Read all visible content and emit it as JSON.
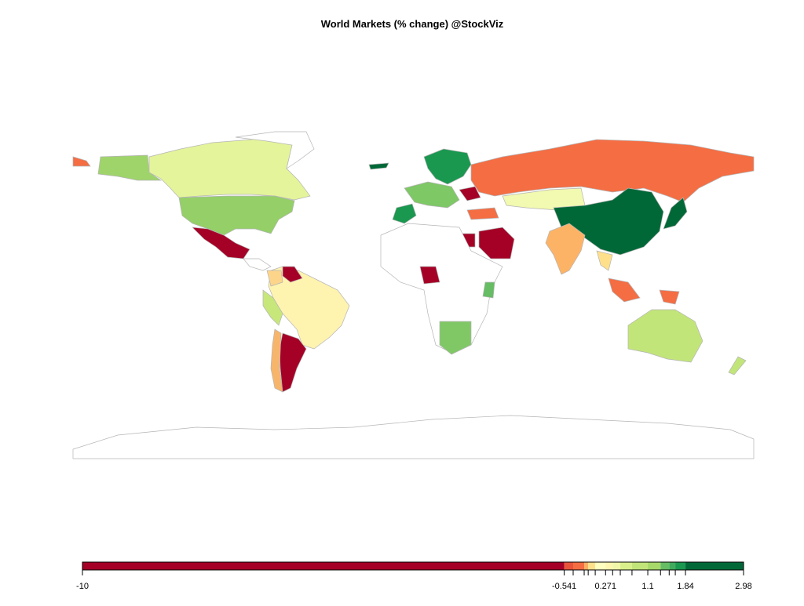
{
  "chart_data": {
    "type": "choropleth",
    "title": "World Markets (% change) @StockViz",
    "legend": {
      "lim": [
        -10,
        2.98
      ],
      "breaks": [
        -10,
        -0.541,
        -0.365,
        -0.149,
        -0.07,
        0.068,
        0.271,
        0.41,
        0.56,
        0.79,
        1.1,
        1.35,
        1.52,
        1.64,
        1.84,
        2.98
      ],
      "colors": [
        "#a50026",
        "#e8543a",
        "#f46d43",
        "#fdae61",
        "#fee08b",
        "#ffffbf",
        "#fff6b0",
        "#f1f9a9",
        "#d9ef8b",
        "#c2e57a",
        "#a6d96a",
        "#66bd63",
        "#41ab5d",
        "#1a9850",
        "#006837"
      ],
      "ticks": [
        -10,
        -0.541,
        0.271,
        1.1,
        1.84,
        2.98
      ]
    }
  }
}
